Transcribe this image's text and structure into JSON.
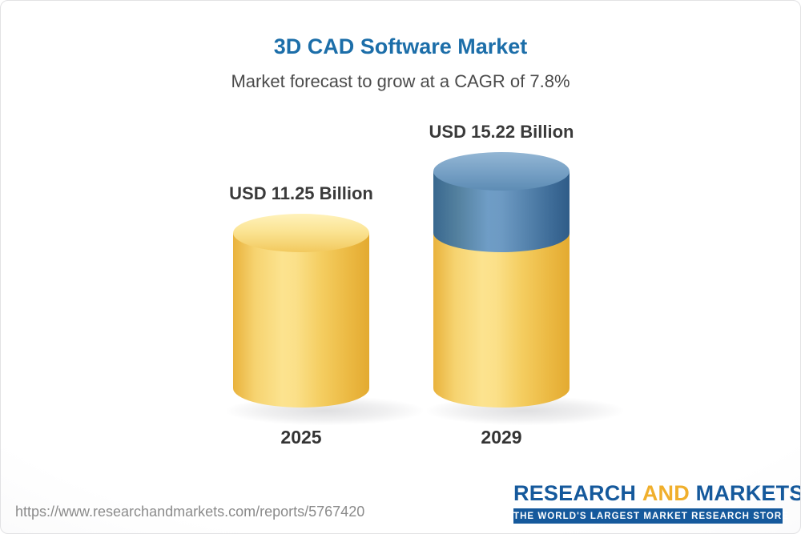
{
  "chart_data": {
    "type": "bar",
    "bar_style": "3d-cylinder",
    "title": "3D CAD Software Market",
    "subtitle": "Market forecast to grow at a CAGR of 7.8%",
    "categories": [
      "2025",
      "2029"
    ],
    "values": [
      11.25,
      15.22
    ],
    "value_labels": [
      "USD 11.25 Billion",
      "USD 15.22 Billion"
    ],
    "unit": "USD Billion",
    "cagr_percent": 7.8,
    "base_value": 11.25,
    "ylim": [
      0,
      16
    ],
    "grid": false,
    "legend": false,
    "colors": {
      "base_segment": "#f4cd60",
      "growth_segment": "#6d9ac3",
      "title_text": "#1c6ea9"
    }
  },
  "footer": {
    "url": "https://www.researchandmarkets.com/reports/5767420",
    "logo": {
      "research": "RESEARCH",
      "and": "AND",
      "markets": "MARKETS",
      "tagline": "THE WORLD'S LARGEST MARKET RESEARCH STORE"
    }
  }
}
